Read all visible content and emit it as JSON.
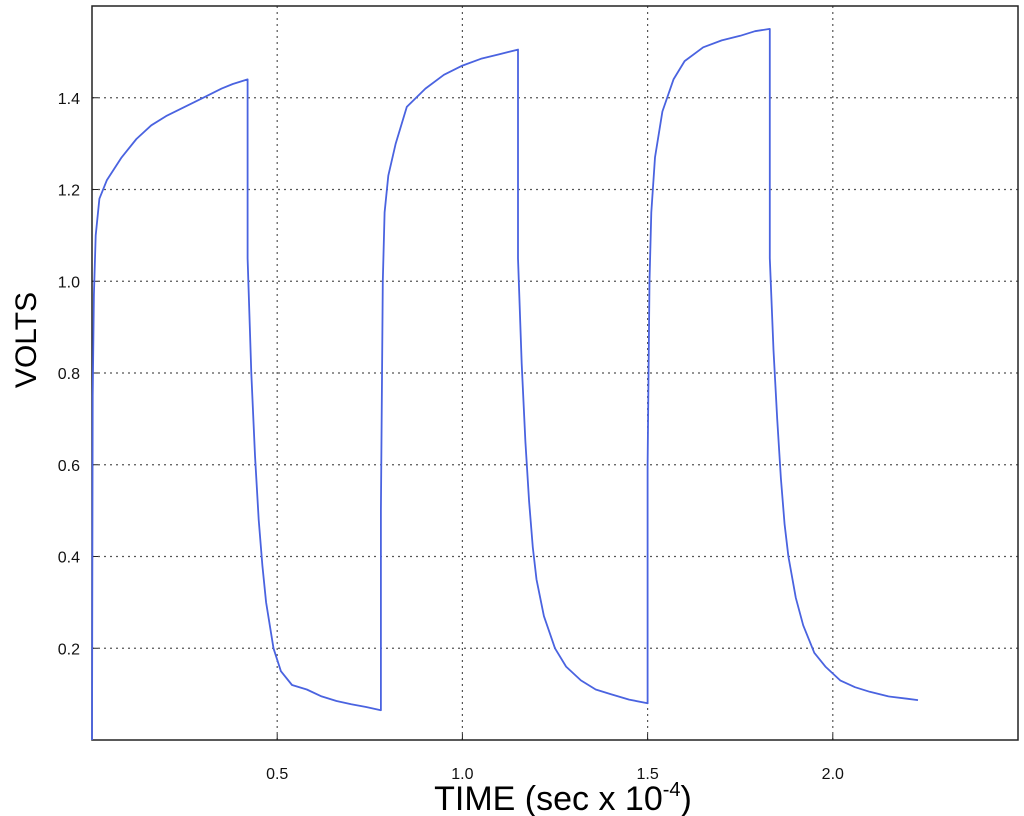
{
  "chart_data": {
    "type": "line",
    "title": "",
    "xlabel": "TIME (sec x 10",
    "xlabel_exponent": "-4",
    "xlabel_suffix": ")",
    "ylabel": "VOLTS",
    "xlim": [
      0.0,
      2.5
    ],
    "ylim": [
      0.0,
      1.6
    ],
    "x_ticks": [
      0.5,
      1.0,
      1.5,
      2.0
    ],
    "x_tick_labels": [
      "0.5",
      "1.0",
      "1.5",
      "2.0"
    ],
    "y_ticks": [
      0.2,
      0.4,
      0.6,
      0.8,
      1.0,
      1.2,
      1.4
    ],
    "y_tick_labels": [
      "0.2",
      "0.4",
      "0.6",
      "0.8",
      "1.0",
      "1.2",
      "1.4"
    ],
    "grid": true,
    "legend": "none",
    "series": [
      {
        "color": "#4a63e0",
        "x": [
          0.0,
          0.002,
          0.005,
          0.01,
          0.02,
          0.04,
          0.08,
          0.12,
          0.16,
          0.2,
          0.25,
          0.3,
          0.35,
          0.38,
          0.42,
          0.42,
          0.43,
          0.44,
          0.45,
          0.46,
          0.47,
          0.49,
          0.51,
          0.54,
          0.58,
          0.62,
          0.66,
          0.7,
          0.74,
          0.78,
          0.78,
          0.785,
          0.79,
          0.8,
          0.82,
          0.85,
          0.9,
          0.95,
          1.0,
          1.05,
          1.1,
          1.15,
          1.15,
          1.16,
          1.17,
          1.18,
          1.19,
          1.2,
          1.22,
          1.25,
          1.28,
          1.32,
          1.36,
          1.4,
          1.45,
          1.5,
          1.5,
          1.505,
          1.51,
          1.52,
          1.54,
          1.57,
          1.6,
          1.65,
          1.7,
          1.75,
          1.79,
          1.83,
          1.83,
          1.84,
          1.85,
          1.86,
          1.87,
          1.88,
          1.9,
          1.92,
          1.95,
          1.98,
          2.02,
          2.06,
          2.1,
          2.15,
          2.2,
          2.23
        ],
        "y": [
          0.0,
          0.75,
          0.97,
          1.1,
          1.18,
          1.22,
          1.27,
          1.31,
          1.34,
          1.36,
          1.38,
          1.4,
          1.42,
          1.43,
          1.44,
          1.05,
          0.8,
          0.62,
          0.48,
          0.38,
          0.3,
          0.2,
          0.15,
          0.12,
          0.11,
          0.095,
          0.085,
          0.078,
          0.072,
          0.065,
          0.5,
          1.0,
          1.15,
          1.23,
          1.3,
          1.38,
          1.42,
          1.45,
          1.47,
          1.485,
          1.495,
          1.505,
          1.05,
          0.82,
          0.65,
          0.52,
          0.42,
          0.35,
          0.27,
          0.2,
          0.16,
          0.13,
          0.11,
          0.1,
          0.088,
          0.08,
          0.6,
          1.0,
          1.15,
          1.27,
          1.37,
          1.44,
          1.48,
          1.51,
          1.525,
          1.535,
          1.545,
          1.55,
          1.05,
          0.85,
          0.7,
          0.57,
          0.47,
          0.4,
          0.31,
          0.25,
          0.19,
          0.16,
          0.13,
          0.115,
          0.105,
          0.095,
          0.09,
          0.087
        ]
      }
    ]
  }
}
